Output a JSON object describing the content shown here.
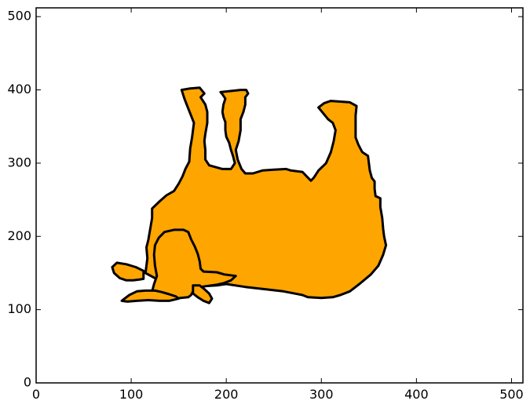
{
  "chart_data": {
    "type": "area",
    "title": "",
    "xlabel": "",
    "ylabel": "",
    "xlim": [
      0,
      512
    ],
    "ylim": [
      0,
      512
    ],
    "grid": false,
    "xticks": [
      0,
      100,
      200,
      300,
      400,
      500
    ],
    "yticks": [
      0,
      100,
      200,
      300,
      400,
      500
    ],
    "xtick_labels": [
      "0",
      "100",
      "200",
      "300",
      "400",
      "500"
    ],
    "ytick_labels": [
      "0",
      "100",
      "200",
      "300",
      "400",
      "500"
    ],
    "fill_color": "#ffa500",
    "edge_color": "#000000",
    "series": [
      {
        "shape": "cow-body",
        "points": [
          [
            115,
            150
          ],
          [
            117,
            170
          ],
          [
            116,
            185
          ],
          [
            118,
            195
          ],
          [
            120,
            210
          ],
          [
            122,
            225
          ],
          [
            122,
            238
          ],
          [
            130,
            248
          ],
          [
            137,
            256
          ],
          [
            145,
            262
          ],
          [
            150,
            272
          ],
          [
            154,
            282
          ],
          [
            157,
            292
          ],
          [
            161,
            302
          ],
          [
            162,
            320
          ],
          [
            164,
            335
          ],
          [
            166,
            355
          ],
          [
            162,
            368
          ],
          [
            159,
            378
          ],
          [
            156,
            388
          ],
          [
            153,
            400
          ],
          [
            162,
            402
          ],
          [
            172,
            403
          ],
          [
            177,
            395
          ],
          [
            173,
            390
          ],
          [
            178,
            380
          ],
          [
            180,
            370
          ],
          [
            180,
            355
          ],
          [
            178,
            340
          ],
          [
            177,
            330
          ],
          [
            178,
            318
          ],
          [
            178,
            305
          ],
          [
            182,
            297
          ],
          [
            196,
            292
          ],
          [
            205,
            292
          ],
          [
            209,
            300
          ],
          [
            207,
            310
          ],
          [
            205,
            318
          ],
          [
            203,
            328
          ],
          [
            200,
            336
          ],
          [
            199,
            345
          ],
          [
            199,
            356
          ],
          [
            197,
            363
          ],
          [
            196,
            370
          ],
          [
            197,
            380
          ],
          [
            199,
            388
          ],
          [
            196,
            394
          ],
          [
            194,
            397
          ],
          [
            215,
            400
          ],
          [
            221,
            400
          ],
          [
            223,
            395
          ],
          [
            220,
            390
          ],
          [
            220,
            380
          ],
          [
            218,
            370
          ],
          [
            215,
            360
          ],
          [
            215,
            345
          ],
          [
            213,
            330
          ],
          [
            210,
            318
          ],
          [
            212,
            305
          ],
          [
            216,
            292
          ],
          [
            220,
            286
          ],
          [
            228,
            286
          ],
          [
            238,
            290
          ],
          [
            250,
            291
          ],
          [
            263,
            292
          ],
          [
            268,
            290
          ],
          [
            280,
            288
          ],
          [
            286,
            280
          ],
          [
            289,
            276
          ],
          [
            292,
            280
          ],
          [
            297,
            290
          ],
          [
            305,
            300
          ],
          [
            310,
            315
          ],
          [
            313,
            330
          ],
          [
            315,
            345
          ],
          [
            312,
            355
          ],
          [
            307,
            360
          ],
          [
            302,
            368
          ],
          [
            297,
            376
          ],
          [
            303,
            382
          ],
          [
            310,
            385
          ],
          [
            330,
            383
          ],
          [
            337,
            378
          ],
          [
            336,
            365
          ],
          [
            336,
            350
          ],
          [
            336,
            335
          ],
          [
            339,
            325
          ],
          [
            343,
            315
          ],
          [
            349,
            310
          ],
          [
            350,
            300
          ],
          [
            351,
            290
          ],
          [
            353,
            280
          ],
          [
            356,
            275
          ],
          [
            356,
            265
          ],
          [
            357,
            255
          ],
          [
            362,
            252
          ],
          [
            362,
            240
          ],
          [
            364,
            225
          ],
          [
            365,
            210
          ],
          [
            366,
            200
          ],
          [
            368,
            188
          ],
          [
            365,
            175
          ],
          [
            360,
            160
          ],
          [
            352,
            148
          ],
          [
            340,
            135
          ],
          [
            330,
            125
          ],
          [
            320,
            120
          ],
          [
            312,
            117
          ],
          [
            300,
            116
          ],
          [
            286,
            117
          ],
          [
            280,
            120
          ],
          [
            260,
            125
          ],
          [
            240,
            128
          ],
          [
            220,
            131
          ],
          [
            200,
            135
          ],
          [
            190,
            133
          ],
          [
            176,
            132
          ],
          [
            165,
            133
          ],
          [
            155,
            137
          ],
          [
            145,
            140
          ],
          [
            135,
            142
          ],
          [
            125,
            143
          ],
          [
            115,
            150
          ]
        ]
      },
      {
        "shape": "left-ear",
        "points": [
          [
            113,
            142
          ],
          [
            113,
            153
          ],
          [
            105,
            158
          ],
          [
            95,
            162
          ],
          [
            85,
            164
          ],
          [
            80,
            158
          ],
          [
            82,
            150
          ],
          [
            88,
            143
          ],
          [
            95,
            140
          ],
          [
            102,
            140
          ],
          [
            108,
            141
          ],
          [
            113,
            142
          ]
        ]
      },
      {
        "shape": "head",
        "points": [
          [
            127,
            146
          ],
          [
            125,
            160
          ],
          [
            124,
            175
          ],
          [
            125,
            188
          ],
          [
            129,
            198
          ],
          [
            135,
            206
          ],
          [
            145,
            209
          ],
          [
            155,
            209
          ],
          [
            160,
            206
          ],
          [
            163,
            196
          ],
          [
            167,
            186
          ],
          [
            170,
            176
          ],
          [
            172,
            166
          ],
          [
            173,
            156
          ],
          [
            176,
            152
          ],
          [
            190,
            151
          ],
          [
            198,
            148
          ],
          [
            210,
            146
          ],
          [
            205,
            140
          ],
          [
            197,
            136
          ],
          [
            190,
            134
          ],
          [
            178,
            132
          ],
          [
            170,
            130
          ],
          [
            165,
            125
          ],
          [
            163,
            120
          ],
          [
            160,
            117
          ],
          [
            145,
            115
          ],
          [
            132,
            116
          ],
          [
            125,
            119
          ],
          [
            122,
            125
          ],
          [
            124,
            135
          ],
          [
            127,
            146
          ]
        ]
      },
      {
        "shape": "right-ear",
        "points": [
          [
            165,
            133
          ],
          [
            172,
            133
          ],
          [
            177,
            128
          ],
          [
            182,
            122
          ],
          [
            185,
            115
          ],
          [
            182,
            109
          ],
          [
            176,
            112
          ],
          [
            170,
            117
          ],
          [
            165,
            122
          ],
          [
            165,
            133
          ]
        ]
      },
      {
        "shape": "muzzle",
        "points": [
          [
            90,
            112
          ],
          [
            98,
            120
          ],
          [
            106,
            125
          ],
          [
            115,
            126
          ],
          [
            125,
            126
          ],
          [
            132,
            124
          ],
          [
            140,
            121
          ],
          [
            147,
            118
          ],
          [
            150,
            115
          ],
          [
            140,
            112
          ],
          [
            130,
            112
          ],
          [
            118,
            113
          ],
          [
            106,
            112
          ],
          [
            96,
            111
          ],
          [
            90,
            112
          ]
        ]
      }
    ]
  }
}
